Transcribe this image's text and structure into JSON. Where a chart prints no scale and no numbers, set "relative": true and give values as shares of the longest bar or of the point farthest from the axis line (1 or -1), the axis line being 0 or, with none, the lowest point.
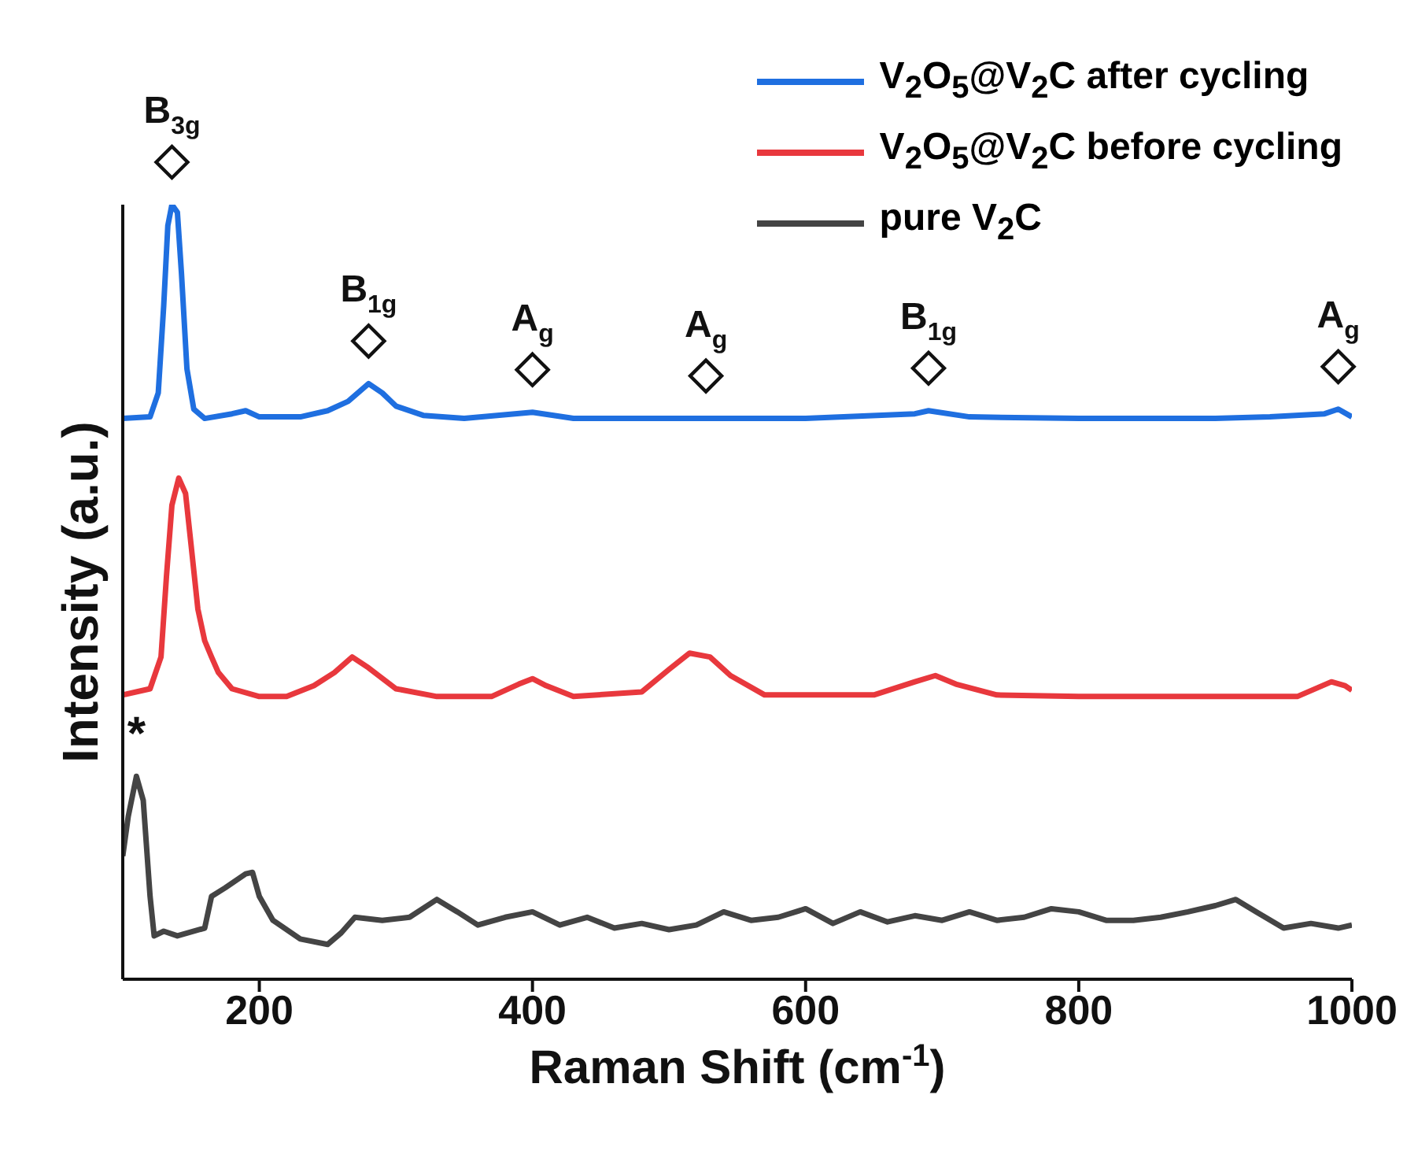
{
  "chart_data": {
    "type": "line",
    "relative": true,
    "xlabel": "Raman Shift (cm$^{-1}$)",
    "ylabel": "Intensity (a.u.)",
    "xlim": [
      100,
      1000
    ],
    "xticks": [
      200,
      400,
      600,
      800,
      1000
    ],
    "grid": false,
    "legend": "top right",
    "marker": "none",
    "line_style": "solid",
    "series": [
      {
        "name": "V$_{2}$O$_{5}$@V$_{2}$C after cycling",
        "color": "#1f6fe0",
        "x": [
          100,
          120,
          126,
          130,
          133,
          136,
          140,
          143,
          147,
          152,
          160,
          180,
          190,
          200,
          230,
          250,
          265,
          280,
          290,
          300,
          320,
          350,
          400,
          430,
          500,
          600,
          680,
          690,
          720,
          800,
          900,
          940,
          980,
          990,
          1000
        ],
        "values": [
          0.724,
          0.726,
          0.757,
          0.87,
          0.973,
          1,
          0.99,
          0.911,
          0.788,
          0.736,
          0.724,
          0.73,
          0.734,
          0.726,
          0.726,
          0.734,
          0.746,
          0.769,
          0.757,
          0.74,
          0.728,
          0.724,
          0.732,
          0.724,
          0.724,
          0.724,
          0.73,
          0.734,
          0.726,
          0.724,
          0.724,
          0.726,
          0.73,
          0.736,
          0.726
        ]
      },
      {
        "name": "V$_{2}$O$_{5}$@V$_{2}$C before cycling",
        "color": "#e8383d",
        "x": [
          100,
          120,
          128,
          132,
          136,
          141,
          146,
          150,
          155,
          160,
          165,
          170,
          180,
          200,
          220,
          240,
          255,
          268,
          280,
          300,
          330,
          370,
          390,
          400,
          410,
          430,
          480,
          500,
          515,
          530,
          545,
          570,
          650,
          680,
          695,
          710,
          740,
          800,
          900,
          960,
          985,
          995,
          1000
        ],
        "values": [
          0.367,
          0.375,
          0.416,
          0.52,
          0.612,
          0.647,
          0.627,
          0.561,
          0.478,
          0.437,
          0.416,
          0.396,
          0.375,
          0.365,
          0.365,
          0.379,
          0.396,
          0.416,
          0.402,
          0.375,
          0.365,
          0.365,
          0.381,
          0.388,
          0.379,
          0.365,
          0.371,
          0.4,
          0.421,
          0.416,
          0.392,
          0.367,
          0.367,
          0.384,
          0.392,
          0.381,
          0.367,
          0.365,
          0.365,
          0.365,
          0.384,
          0.379,
          0.373
        ]
      },
      {
        "name": "pure V$_{2}$C",
        "color": "#444444",
        "x": [
          100,
          104,
          110,
          115,
          120,
          123,
          130,
          140,
          160,
          165,
          175,
          190,
          195,
          200,
          210,
          230,
          250,
          260,
          270,
          290,
          310,
          330,
          345,
          360,
          380,
          400,
          420,
          440,
          460,
          480,
          500,
          520,
          540,
          560,
          580,
          600,
          620,
          640,
          660,
          680,
          700,
          720,
          740,
          760,
          780,
          800,
          820,
          840,
          860,
          880,
          900,
          915,
          930,
          950,
          970,
          990,
          1000
        ],
        "values": [
          0.159,
          0.21,
          0.262,
          0.231,
          0.107,
          0.056,
          0.062,
          0.056,
          0.066,
          0.107,
          0.118,
          0.136,
          0.138,
          0.107,
          0.076,
          0.052,
          0.045,
          0.06,
          0.08,
          0.076,
          0.08,
          0.103,
          0.087,
          0.07,
          0.08,
          0.087,
          0.07,
          0.08,
          0.066,
          0.072,
          0.064,
          0.07,
          0.087,
          0.076,
          0.08,
          0.091,
          0.072,
          0.087,
          0.074,
          0.082,
          0.076,
          0.087,
          0.076,
          0.08,
          0.091,
          0.087,
          0.076,
          0.076,
          0.08,
          0.087,
          0.095,
          0.103,
          0.087,
          0.066,
          0.072,
          0.066,
          0.07
        ]
      }
    ],
    "annotations": [
      {
        "text": "B$_{3g}$",
        "x": 136,
        "y": 1
      },
      {
        "text": "B$_{1g}$",
        "x": 280,
        "y": 0.769
      },
      {
        "text": "A$_{g}$",
        "x": 400,
        "y": 0.732
      },
      {
        "text": "A$_{g}$",
        "x": 527,
        "y": 0.724
      },
      {
        "text": "B$_{1g}$",
        "x": 690,
        "y": 0.734
      },
      {
        "text": "A$_{g}$",
        "x": 990,
        "y": 0.736
      },
      {
        "text": "*",
        "x": 110,
        "y": 0.262
      }
    ]
  }
}
